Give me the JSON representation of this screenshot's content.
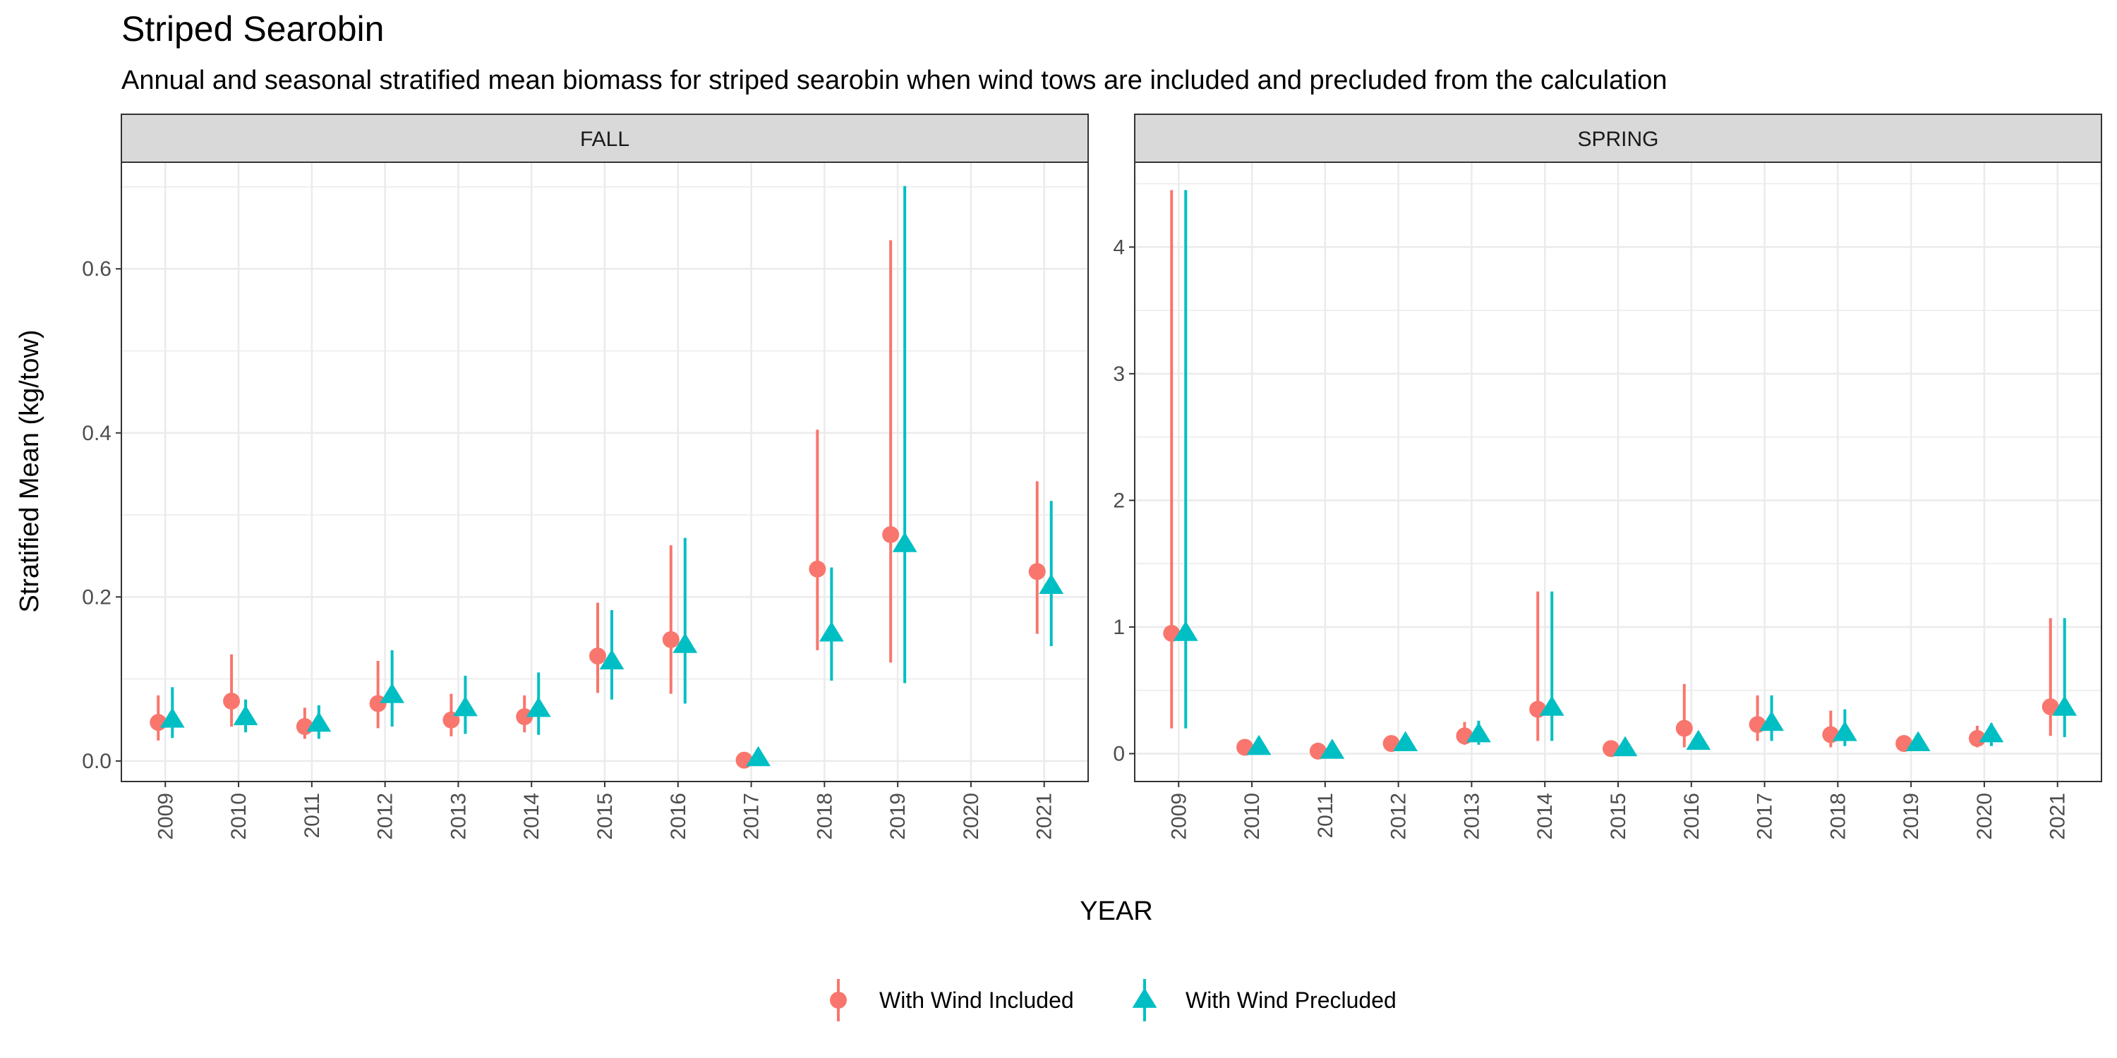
{
  "chart_data": {
    "type": "scatter",
    "title": "Striped Searobin",
    "subtitle": "Annual and seasonal stratified mean biomass for striped searobin when wind tows are included and precluded from the calculation",
    "xlabel": "YEAR",
    "ylabel": "Stratified Mean (kg/tow)",
    "grid": true,
    "legend_position": "bottom",
    "series_styles": [
      {
        "name": "With Wind Included",
        "color": "#F8766D",
        "marker": "circle"
      },
      {
        "name": "With Wind Precluded",
        "color": "#00BFC4",
        "marker": "triangle"
      }
    ],
    "panels": [
      {
        "label": "FALL",
        "x": [
          2009,
          2010,
          2011,
          2012,
          2013,
          2014,
          2015,
          2016,
          2017,
          2018,
          2019,
          2020,
          2021
        ],
        "ylim": [
          -0.025,
          0.73
        ],
        "yticks": [
          0.0,
          0.2,
          0.4,
          0.6
        ],
        "ytick_labels": [
          "0.0",
          "0.2",
          "0.4",
          "0.6"
        ],
        "series": [
          {
            "name": "With Wind Included",
            "values": [
              0.047,
              0.073,
              0.042,
              0.07,
              0.05,
              0.054,
              0.128,
              0.148,
              0.001,
              0.234,
              0.276,
              null,
              0.231
            ],
            "lower": [
              0.025,
              0.042,
              0.027,
              0.04,
              0.03,
              0.035,
              0.083,
              0.082,
              0.0,
              0.135,
              0.12,
              null,
              0.155
            ],
            "upper": [
              0.08,
              0.13,
              0.065,
              0.122,
              0.082,
              0.08,
              0.193,
              0.263,
              0.003,
              0.404,
              0.635,
              null,
              0.341
            ]
          },
          {
            "name": "With Wind Precluded",
            "values": [
              0.05,
              0.053,
              0.045,
              0.08,
              0.064,
              0.063,
              0.121,
              0.141,
              0.003,
              0.155,
              0.264,
              null,
              0.213
            ],
            "lower": [
              0.028,
              0.035,
              0.027,
              0.042,
              0.033,
              0.032,
              0.075,
              0.07,
              0.0,
              0.098,
              0.095,
              null,
              0.14
            ],
            "upper": [
              0.09,
              0.075,
              0.068,
              0.135,
              0.104,
              0.108,
              0.184,
              0.272,
              0.005,
              0.236,
              0.701,
              null,
              0.317
            ]
          }
        ]
      },
      {
        "label": "SPRING",
        "x": [
          2009,
          2010,
          2011,
          2012,
          2013,
          2014,
          2015,
          2016,
          2017,
          2018,
          2019,
          2020,
          2021
        ],
        "ylim": [
          -0.22,
          4.67
        ],
        "yticks": [
          0,
          1,
          2,
          3,
          4
        ],
        "ytick_labels": [
          "0",
          "1",
          "2",
          "3",
          "4"
        ],
        "series": [
          {
            "name": "With Wind Included",
            "values": [
              0.95,
              0.05,
              0.02,
              0.08,
              0.14,
              0.35,
              0.04,
              0.2,
              0.23,
              0.15,
              0.08,
              0.12,
              0.37
            ],
            "lower": [
              0.2,
              0.02,
              0.0,
              0.04,
              0.07,
              0.1,
              0.02,
              0.05,
              0.1,
              0.05,
              0.05,
              0.05,
              0.14
            ],
            "upper": [
              4.45,
              0.08,
              0.04,
              0.12,
              0.25,
              1.28,
              0.06,
              0.55,
              0.46,
              0.34,
              0.11,
              0.22,
              1.07
            ]
          },
          {
            "name": "With Wind Precluded",
            "values": [
              0.95,
              0.05,
              0.02,
              0.08,
              0.15,
              0.36,
              0.04,
              0.09,
              0.24,
              0.16,
              0.08,
              0.15,
              0.36
            ],
            "lower": [
              0.2,
              0.02,
              0.0,
              0.04,
              0.07,
              0.1,
              0.02,
              0.04,
              0.1,
              0.06,
              0.05,
              0.06,
              0.13
            ],
            "upper": [
              4.45,
              0.08,
              0.04,
              0.12,
              0.26,
              1.28,
              0.06,
              0.14,
              0.46,
              0.35,
              0.11,
              0.24,
              1.07
            ]
          }
        ]
      }
    ]
  }
}
